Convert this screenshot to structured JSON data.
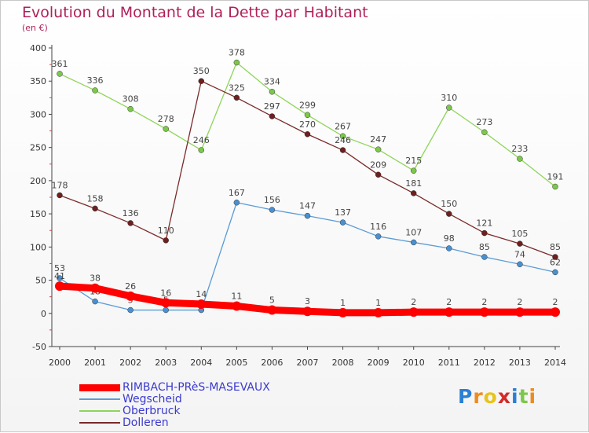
{
  "chart_data": {
    "type": "line",
    "title": "Evolution du Montant de la Dette par Habitant",
    "unit_label": "(en €)",
    "xlabel": "",
    "ylabel": "",
    "ylim": [
      -50,
      400
    ],
    "yticks": [
      -50,
      0,
      50,
      100,
      150,
      200,
      250,
      300,
      350,
      400
    ],
    "grid": false,
    "legend_position": "bottom-left",
    "categories": [
      "2000",
      "2001",
      "2002",
      "2003",
      "2004",
      "2005",
      "2006",
      "2007",
      "2008",
      "2009",
      "2010",
      "2011",
      "2012",
      "2013",
      "2014"
    ],
    "series": [
      {
        "name": "Wegscheid",
        "color": "#5b9bd5",
        "marker_color": "#4a90d0",
        "values": [
          53,
          18,
          5,
          5,
          5,
          167,
          156,
          147,
          137,
          116,
          107,
          98,
          85,
          74,
          62
        ],
        "labels": [
          "53",
          "18",
          "5",
          "5",
          "",
          "167",
          "156",
          "147",
          "137",
          "116",
          "107",
          "98",
          "85",
          "74",
          "62"
        ]
      },
      {
        "name": "Oberbruck",
        "color": "#8fd45a",
        "marker_color": "#7cc84a",
        "values": [
          361,
          336,
          308,
          278,
          246,
          378,
          334,
          299,
          267,
          247,
          215,
          310,
          273,
          233,
          191
        ],
        "labels": [
          "361",
          "336",
          "308",
          "278",
          "246",
          "378",
          "334",
          "299",
          "267",
          "247",
          "215",
          "310",
          "273",
          "233",
          "191"
        ]
      },
      {
        "name": "Dolleren",
        "color": "#7a2a2a",
        "marker_color": "#6e1f1f",
        "values": [
          178,
          158,
          136,
          110,
          350,
          325,
          297,
          270,
          246,
          209,
          181,
          150,
          121,
          105,
          85
        ],
        "labels": [
          "178",
          "158",
          "136",
          "110",
          "350",
          "325",
          "297",
          "270",
          "246",
          "209",
          "181",
          "150",
          "121",
          "105",
          "85"
        ]
      },
      {
        "name": "RIMBACH-PRèS-MASEVAUX",
        "color": "#ff0000",
        "marker_color": "#ff0000",
        "thick": true,
        "values": [
          41,
          38,
          26,
          16,
          14,
          11,
          5,
          3,
          1,
          1,
          2,
          2,
          2,
          2,
          2
        ],
        "labels": [
          "41",
          "38",
          "26",
          "16",
          "14",
          "11",
          "5",
          "3",
          "1",
          "1",
          "2",
          "2",
          "2",
          "2",
          "2"
        ]
      }
    ],
    "legend_order": [
      "RIMBACH-PRèS-MASEVAUX",
      "Wegscheid",
      "Oberbruck",
      "Dolleren"
    ]
  },
  "logo": {
    "letters": [
      "P",
      "r",
      "o",
      "x",
      "i",
      "t",
      "i"
    ],
    "colors": [
      "#2a7fd4",
      "#f08a1c",
      "#e8c41a",
      "#d42a2a",
      "#2a7fd4",
      "#7cc84a",
      "#f08a1c"
    ]
  }
}
